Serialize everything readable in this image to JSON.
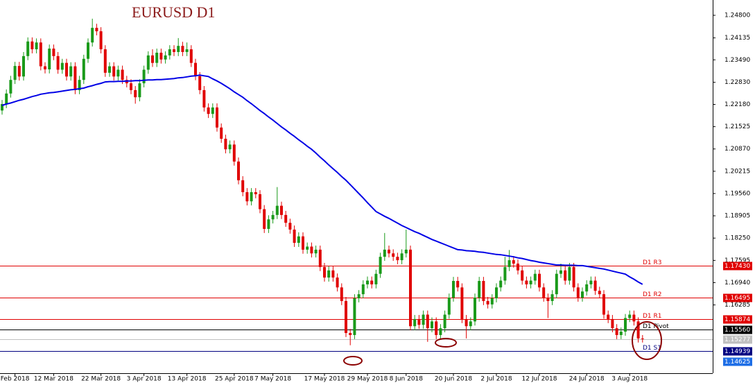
{
  "chart_data": {
    "type": "candlestick",
    "title": "EURUSD D1",
    "up_color": "#1a9a1a",
    "down_color": "#e00000",
    "ylim": [
      1.14339,
      1.25249
    ],
    "yticks": [
      {
        "value": 1.248,
        "label": "1.24800"
      },
      {
        "value": 1.24135,
        "label": "1.24135"
      },
      {
        "value": 1.2349,
        "label": "1.23490"
      },
      {
        "value": 1.2283,
        "label": "1.22830"
      },
      {
        "value": 1.2218,
        "label": "1.22180"
      },
      {
        "value": 1.21525,
        "label": "1.21525"
      },
      {
        "value": 1.2087,
        "label": "1.20870"
      },
      {
        "value": 1.20215,
        "label": "1.20215"
      },
      {
        "value": 1.1956,
        "label": "1.19560"
      },
      {
        "value": 1.18905,
        "label": "1.18905"
      },
      {
        "value": 1.1825,
        "label": "1.18250"
      },
      {
        "value": 1.17595,
        "label": "1.17595"
      },
      {
        "value": 1.1694,
        "label": "1.16940"
      },
      {
        "value": 1.16285,
        "label": "1.16285"
      }
    ],
    "categories": [
      null,
      null,
      null,
      "Feb 2018",
      null,
      null,
      null,
      null,
      null,
      null,
      null,
      null,
      "12 Mar 2018",
      null,
      null,
      null,
      null,
      null,
      null,
      null,
      null,
      null,
      null,
      "22 Mar 2018",
      null,
      null,
      null,
      null,
      null,
      null,
      null,
      null,
      null,
      "3 Apr 2018",
      null,
      null,
      null,
      null,
      null,
      null,
      null,
      null,
      null,
      "13 Apr 2018",
      null,
      null,
      null,
      null,
      null,
      null,
      null,
      null,
      null,
      null,
      "25 Apr 2018",
      null,
      null,
      null,
      null,
      null,
      null,
      null,
      null,
      "7 May 2018",
      null,
      null,
      null,
      null,
      null,
      null,
      null,
      null,
      null,
      null,
      null,
      "17 May 2018",
      null,
      null,
      null,
      null,
      null,
      null,
      null,
      null,
      null,
      "29 May 2018",
      null,
      null,
      null,
      null,
      null,
      null,
      null,
      null,
      "8 Jun 2018",
      null,
      null,
      null,
      null,
      null,
      null,
      null,
      null,
      null,
      null,
      "20 Jun 2018",
      null,
      null,
      null,
      null,
      null,
      null,
      null,
      null,
      null,
      "2 Jul 2018",
      null,
      null,
      null,
      null,
      null,
      null,
      null,
      null,
      null,
      "12 Jul 2018",
      null,
      null,
      null,
      null,
      null,
      null,
      null,
      null,
      null,
      null,
      "24 Jul 2018",
      null,
      null,
      null,
      null,
      null,
      null,
      null,
      null,
      null,
      "3 Aug 2018",
      null,
      null,
      null
    ],
    "open": [
      1.22,
      1.2219,
      1.225,
      1.229,
      1.2331,
      1.23,
      1.236,
      1.2403,
      1.238,
      1.24,
      1.233,
      1.2321,
      1.2382,
      1.236,
      1.232,
      1.234,
      1.23,
      1.233,
      1.226,
      1.229,
      1.2352,
      1.24,
      1.2443,
      1.2433,
      1.238,
      1.2311,
      1.233,
      1.23,
      1.232,
      1.229,
      1.228,
      1.226,
      1.2239,
      1.228,
      1.232,
      1.2362,
      1.234,
      1.237,
      1.235,
      1.2362,
      1.238,
      1.2372,
      1.239,
      1.2372,
      1.238,
      1.234,
      1.2301,
      1.226,
      1.2209,
      1.219,
      1.2209,
      1.215,
      1.2117,
      1.2086,
      1.21,
      1.205,
      1.1995,
      1.196,
      1.1933,
      1.196,
      1.1954,
      1.191,
      1.1852,
      1.188,
      1.1893,
      1.192,
      1.1893,
      1.187,
      1.185,
      1.1811,
      1.183,
      1.1791,
      1.18,
      1.178,
      1.1791,
      1.174,
      1.1709,
      1.173,
      1.1709,
      1.168,
      1.164,
      1.1546,
      1.154,
      1.1648,
      1.166,
      1.1689,
      1.17,
      1.1689,
      1.172,
      1.177,
      1.1791,
      1.178,
      1.177,
      1.176,
      1.178,
      1.1791,
      1.1566,
      1.1587,
      1.157,
      1.16,
      1.156,
      1.158,
      1.154,
      1.156,
      1.16,
      1.165,
      1.1699,
      1.168,
      1.1587,
      1.1566,
      1.158,
      1.165,
      1.1699,
      1.164,
      1.163,
      1.1648,
      1.168,
      1.17,
      1.174,
      1.176,
      1.175,
      1.173,
      1.17,
      1.1689,
      1.17,
      1.172,
      1.168,
      1.165,
      1.164,
      1.166,
      1.172,
      1.173,
      1.17,
      1.174,
      1.168,
      1.165,
      1.1668,
      1.1689,
      1.17,
      1.167,
      1.166,
      1.16,
      1.1587,
      1.156,
      1.154,
      1.155,
      1.159,
      1.16,
      1.158,
      1.153
    ],
    "high": [
      1.2231,
      1.2262,
      1.2302,
      1.2343,
      1.2343,
      1.2372,
      1.2415,
      1.2415,
      1.2412,
      1.2412,
      1.2342,
      1.2394,
      1.2394,
      1.2372,
      1.2352,
      1.2352,
      1.2342,
      1.2342,
      1.2302,
      1.2364,
      1.2412,
      1.247,
      1.2455,
      1.2445,
      1.2392,
      1.2342,
      1.2342,
      1.2332,
      1.2332,
      1.2302,
      1.2292,
      1.2272,
      1.2292,
      1.2332,
      1.2374,
      1.238,
      1.2382,
      1.2382,
      1.2374,
      1.2392,
      1.2392,
      1.2413,
      1.2402,
      1.24,
      1.2392,
      1.2352,
      1.2313,
      1.2272,
      1.2221,
      1.2221,
      1.2221,
      1.2162,
      1.2129,
      1.2112,
      1.2112,
      1.2062,
      1.2007,
      1.1972,
      1.1972,
      1.1972,
      1.1966,
      1.1922,
      1.1892,
      1.1905,
      1.1975,
      1.1932,
      1.1905,
      1.1882,
      1.1862,
      1.1842,
      1.1842,
      1.1812,
      1.1812,
      1.1803,
      1.1803,
      1.1752,
      1.1742,
      1.1742,
      1.1721,
      1.1692,
      1.1652,
      1.1558,
      1.166,
      1.1672,
      1.1701,
      1.1712,
      1.1712,
      1.1732,
      1.1782,
      1.184,
      1.1803,
      1.1792,
      1.1782,
      1.1792,
      1.185,
      1.1803,
      1.1599,
      1.1599,
      1.1612,
      1.1612,
      1.1592,
      1.1592,
      1.1572,
      1.1612,
      1.1662,
      1.1711,
      1.1711,
      1.1692,
      1.1599,
      1.1592,
      1.1662,
      1.1711,
      1.1711,
      1.1652,
      1.166,
      1.1692,
      1.1712,
      1.177,
      1.179,
      1.1772,
      1.1762,
      1.1742,
      1.1712,
      1.1712,
      1.1732,
      1.1732,
      1.1692,
      1.1662,
      1.1672,
      1.1732,
      1.175,
      1.1742,
      1.1752,
      1.1752,
      1.1692,
      1.168,
      1.1701,
      1.1712,
      1.1712,
      1.1682,
      1.1672,
      1.1612,
      1.1599,
      1.1572,
      1.1562,
      1.1602,
      1.1612,
      1.1612,
      1.1592,
      1.154
    ],
    "low": [
      1.2188,
      1.2207,
      1.2238,
      1.2278,
      1.2288,
      1.2288,
      1.2348,
      1.2368,
      1.2368,
      1.2318,
      1.2309,
      1.2309,
      1.2348,
      1.2308,
      1.2308,
      1.2288,
      1.2288,
      1.2248,
      1.2248,
      1.2278,
      1.234,
      1.2388,
      1.2421,
      1.2368,
      1.2299,
      1.2299,
      1.2288,
      1.2288,
      1.2278,
      1.2268,
      1.2248,
      1.222,
      1.2227,
      1.2268,
      1.2308,
      1.2328,
      1.2328,
      1.2338,
      1.2338,
      1.235,
      1.236,
      1.236,
      1.236,
      1.236,
      1.2328,
      1.2289,
      1.2248,
      1.2197,
      1.2178,
      1.2178,
      1.2138,
      1.2105,
      1.2074,
      1.2074,
      1.2038,
      1.1983,
      1.1948,
      1.1921,
      1.1921,
      1.1942,
      1.1898,
      1.184,
      1.184,
      1.1868,
      1.1881,
      1.1881,
      1.1858,
      1.1838,
      1.1799,
      1.1799,
      1.1779,
      1.1779,
      1.1768,
      1.1768,
      1.1728,
      1.1697,
      1.1697,
      1.1697,
      1.1668,
      1.1628,
      1.1534,
      1.151,
      1.1528,
      1.1636,
      1.1648,
      1.1677,
      1.1677,
      1.1677,
      1.1708,
      1.1758,
      1.1768,
      1.1758,
      1.1748,
      1.1748,
      1.1768,
      1.1554,
      1.1554,
      1.1558,
      1.1558,
      1.152,
      1.1548,
      1.1528,
      1.1528,
      1.1548,
      1.1588,
      1.1638,
      1.1668,
      1.1575,
      1.153,
      1.1554,
      1.1568,
      1.1638,
      1.1628,
      1.1618,
      1.1618,
      1.1636,
      1.1668,
      1.1688,
      1.1728,
      1.1738,
      1.1718,
      1.1688,
      1.1677,
      1.1677,
      1.1688,
      1.1668,
      1.1638,
      1.159,
      1.1628,
      1.1648,
      1.1708,
      1.1688,
      1.1688,
      1.1668,
      1.1638,
      1.1638,
      1.1656,
      1.1677,
      1.1658,
      1.1648,
      1.1588,
      1.1575,
      1.1548,
      1.1528,
      1.1528,
      1.1538,
      1.1578,
      1.1568,
      1.1518,
      1.1518
    ],
    "close": [
      1.2219,
      1.225,
      1.229,
      1.2331,
      1.23,
      1.236,
      1.2403,
      1.238,
      1.24,
      1.233,
      1.2321,
      1.2382,
      1.236,
      1.232,
      1.234,
      1.23,
      1.233,
      1.226,
      1.229,
      1.2352,
      1.24,
      1.2443,
      1.2433,
      1.238,
      1.2311,
      1.233,
      1.23,
      1.232,
      1.229,
      1.228,
      1.226,
      1.2239,
      1.228,
      1.232,
      1.2362,
      1.234,
      1.237,
      1.235,
      1.2362,
      1.238,
      1.2372,
      1.239,
      1.2372,
      1.238,
      1.234,
      1.2301,
      1.226,
      1.2209,
      1.219,
      1.2209,
      1.215,
      1.2117,
      1.2086,
      1.21,
      1.205,
      1.1995,
      1.196,
      1.1933,
      1.196,
      1.1954,
      1.191,
      1.1852,
      1.188,
      1.1893,
      1.192,
      1.1893,
      1.187,
      1.185,
      1.1811,
      1.183,
      1.1791,
      1.18,
      1.178,
      1.1791,
      1.174,
      1.1709,
      1.173,
      1.1709,
      1.168,
      1.164,
      1.1546,
      1.154,
      1.1648,
      1.166,
      1.1689,
      1.17,
      1.1689,
      1.172,
      1.177,
      1.1791,
      1.178,
      1.177,
      1.176,
      1.178,
      1.1791,
      1.1566,
      1.1587,
      1.157,
      1.16,
      1.156,
      1.158,
      1.154,
      1.156,
      1.16,
      1.165,
      1.1699,
      1.168,
      1.1587,
      1.1566,
      1.158,
      1.165,
      1.1699,
      1.164,
      1.163,
      1.1648,
      1.168,
      1.17,
      1.174,
      1.176,
      1.175,
      1.173,
      1.17,
      1.1689,
      1.17,
      1.172,
      1.168,
      1.165,
      1.164,
      1.166,
      1.172,
      1.173,
      1.17,
      1.174,
      1.168,
      1.165,
      1.1668,
      1.1689,
      1.17,
      1.167,
      1.166,
      1.16,
      1.1587,
      1.156,
      1.154,
      1.155,
      1.159,
      1.16,
      1.158,
      1.153,
      1.1528
    ],
    "overlays": [
      {
        "type": "line",
        "color": "#0000e6",
        "values": [
          1.2215,
          1.2219,
          1.2222,
          1.2226,
          1.223,
          1.2233,
          1.2237,
          1.2241,
          1.2244,
          1.2248,
          1.225,
          1.2252,
          1.2253,
          1.2255,
          1.2257,
          1.2259,
          1.2261,
          1.2262,
          1.2264,
          1.2266,
          1.227,
          1.2273,
          1.2277,
          1.228,
          1.2284,
          1.2285,
          1.2285,
          1.2286,
          1.2286,
          1.2287,
          1.2287,
          1.2288,
          1.2288,
          1.2289,
          1.229,
          1.229,
          1.2291,
          1.2291,
          1.2292,
          1.2293,
          1.2294,
          1.2296,
          1.2297,
          1.2299,
          1.2301,
          1.2302,
          1.2304,
          1.2302,
          1.23,
          1.2293,
          1.2287,
          1.228,
          1.2272,
          1.2264,
          1.2255,
          1.2247,
          1.2239,
          1.2229,
          1.222,
          1.221,
          1.22,
          1.2191,
          1.2181,
          1.2172,
          1.2162,
          1.2152,
          1.2143,
          1.2133,
          1.2124,
          1.2114,
          1.2105,
          1.2095,
          1.2086,
          1.2075,
          1.2063,
          1.2052,
          1.204,
          1.2029,
          1.2018,
          1.2006,
          1.1995,
          1.1982,
          1.1969,
          1.1956,
          1.1943,
          1.1929,
          1.1916,
          1.1903,
          1.1896,
          1.1889,
          1.1883,
          1.1876,
          1.1869,
          1.1862,
          1.1856,
          1.185,
          1.1844,
          1.1839,
          1.1833,
          1.1827,
          1.1821,
          1.1816,
          1.1811,
          1.1806,
          1.1801,
          1.1796,
          1.1791,
          1.179,
          1.1788,
          1.1787,
          1.1786,
          1.1784,
          1.1783,
          1.1781,
          1.1779,
          1.1777,
          1.1776,
          1.1774,
          1.1772,
          1.177,
          1.1767,
          1.1765,
          1.1762,
          1.1759,
          1.1757,
          1.1754,
          1.1752,
          1.175,
          1.1748,
          1.1746,
          1.1746,
          1.1745,
          1.1745,
          1.1745,
          1.1744,
          1.1744,
          1.1742,
          1.174,
          1.1738,
          1.1736,
          1.1734,
          1.1731,
          1.1728,
          1.1725,
          1.1722,
          1.1719,
          1.1711,
          1.1704,
          1.1696,
          1.1689
        ]
      }
    ],
    "levels": [
      {
        "name": "D1 R3",
        "value": 1.1743,
        "label": "1.17430",
        "color": "#e00000"
      },
      {
        "name": "D1 R2",
        "value": 1.16495,
        "label": "1.16495",
        "color": "#e00000"
      },
      {
        "name": "D1 R1",
        "value": 1.15874,
        "label": "1.15874",
        "color": "#e00000"
      },
      {
        "name": "D1 Pivot",
        "value": 1.1556,
        "label": "1.15560",
        "color": "#000000"
      },
      {
        "name": "D1 S1",
        "value": 1.14939,
        "label": "1.14939",
        "color": "#000080"
      }
    ],
    "price_tags": [
      {
        "value": 1.15277,
        "label": "1.15277",
        "color": "#c0c0c0",
        "line": true
      },
      {
        "value": 1.14625,
        "label": "1.14625",
        "color": "#1e6ee6",
        "line": false
      }
    ]
  }
}
